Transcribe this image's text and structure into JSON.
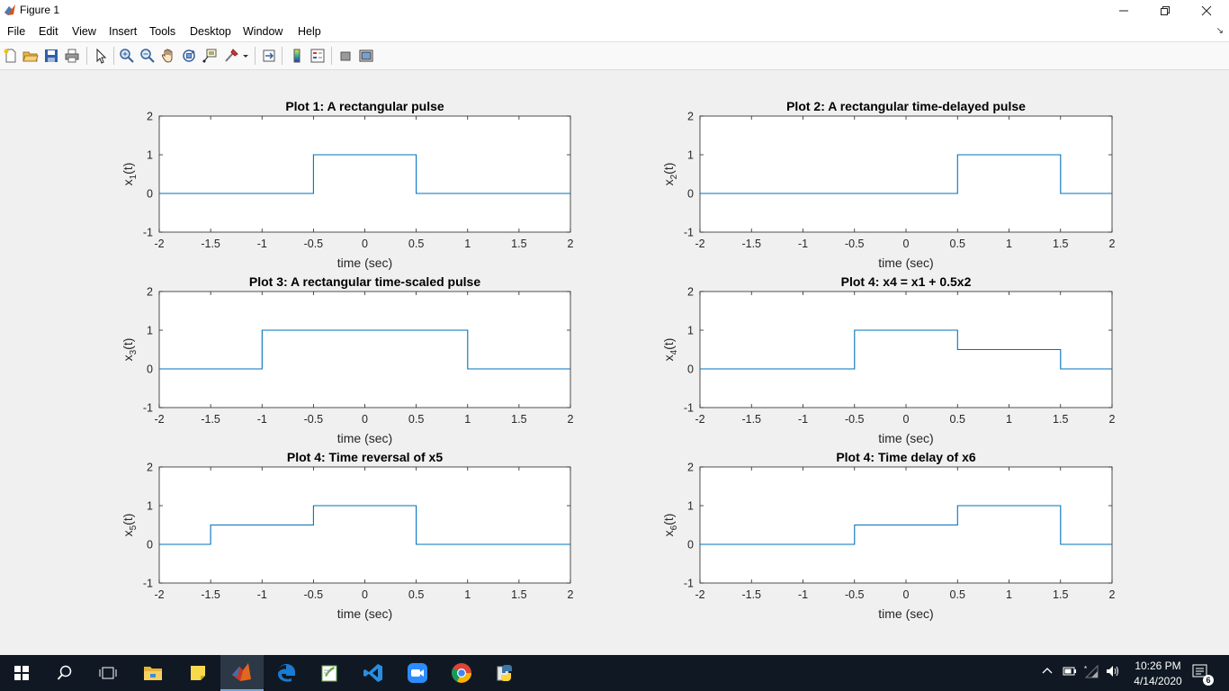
{
  "window": {
    "title": "Figure 1",
    "minimize_icon": "minimize-icon",
    "restore_icon": "restore-icon",
    "close_icon": "close-icon"
  },
  "menu": [
    "File",
    "Edit",
    "View",
    "Insert",
    "Tools",
    "Desktop",
    "Window",
    "Help"
  ],
  "toolbar_icons": [
    "new-figure-icon",
    "open-file-icon",
    "save-icon",
    "print-icon",
    "select-arrow-icon",
    "zoom-in-icon",
    "zoom-out-icon",
    "pan-icon",
    "rotate-3d-icon",
    "data-cursor-icon",
    "brush-icon",
    "link-plot-icon",
    "insert-colorbar-icon",
    "insert-legend-icon",
    "hide-plot-tools-icon",
    "show-plot-tools-icon"
  ],
  "chart_data": [
    {
      "type": "line",
      "title": "Plot 1: A rectangular pulse",
      "xlabel": "time (sec)",
      "ylabel": "x_1(t)",
      "ylabel_base": "x",
      "ylabel_sub": "1",
      "ylabel_tail": "(t)",
      "xlim": [
        -2,
        2
      ],
      "ylim": [
        -1,
        2
      ],
      "xticks": [
        -2,
        -1.5,
        -1,
        -0.5,
        0,
        0.5,
        1,
        1.5,
        2
      ],
      "xtick_labels": [
        "-2",
        "-1.5",
        "-1",
        "-0.5",
        "0",
        "0.5",
        "1",
        "1.5",
        "2"
      ],
      "yticks": [
        -1,
        0,
        1,
        2
      ],
      "ytick_labels": [
        "-1",
        "0",
        "1",
        "2"
      ],
      "x": [
        -2,
        -0.5,
        -0.5,
        0.5,
        0.5,
        2
      ],
      "y": [
        0,
        0,
        1,
        1,
        0,
        0
      ],
      "color": "#0072bd"
    },
    {
      "type": "line",
      "title": "Plot 2: A rectangular time-delayed pulse",
      "xlabel": "time (sec)",
      "ylabel": "x_2(t)",
      "ylabel_base": "x",
      "ylabel_sub": "2",
      "ylabel_tail": "(t)",
      "xlim": [
        -2,
        2
      ],
      "ylim": [
        -1,
        2
      ],
      "xticks": [
        -2,
        -1.5,
        -1,
        -0.5,
        0,
        0.5,
        1,
        1.5,
        2
      ],
      "xtick_labels": [
        "-2",
        "-1.5",
        "-1",
        "-0.5",
        "0",
        "0.5",
        "1",
        "1.5",
        "2"
      ],
      "yticks": [
        -1,
        0,
        1,
        2
      ],
      "ytick_labels": [
        "-1",
        "0",
        "1",
        "2"
      ],
      "x": [
        -2,
        0.5,
        0.5,
        1.5,
        1.5,
        2
      ],
      "y": [
        0,
        0,
        1,
        1,
        0,
        0
      ],
      "color": "#0072bd"
    },
    {
      "type": "line",
      "title": "Plot 3: A rectangular time-scaled pulse",
      "xlabel": "time (sec)",
      "ylabel": "x_3(t)",
      "ylabel_base": "x",
      "ylabel_sub": "3",
      "ylabel_tail": "(t)",
      "xlim": [
        -2,
        2
      ],
      "ylim": [
        -1,
        2
      ],
      "xticks": [
        -2,
        -1.5,
        -1,
        -0.5,
        0,
        0.5,
        1,
        1.5,
        2
      ],
      "xtick_labels": [
        "-2",
        "-1.5",
        "-1",
        "-0.5",
        "0",
        "0.5",
        "1",
        "1.5",
        "2"
      ],
      "yticks": [
        -1,
        0,
        1,
        2
      ],
      "ytick_labels": [
        "-1",
        "0",
        "1",
        "2"
      ],
      "x": [
        -2,
        -1,
        -1,
        1,
        1,
        2
      ],
      "y": [
        0,
        0,
        1,
        1,
        0,
        0
      ],
      "color": "#0072bd"
    },
    {
      "type": "line",
      "title": "Plot 4: x4 = x1 + 0.5x2",
      "xlabel": "time (sec)",
      "ylabel": "x_4(t)",
      "ylabel_base": "x",
      "ylabel_sub": "4",
      "ylabel_tail": "(t)",
      "xlim": [
        -2,
        2
      ],
      "ylim": [
        -1,
        2
      ],
      "xticks": [
        -2,
        -1.5,
        -1,
        -0.5,
        0,
        0.5,
        1,
        1.5,
        2
      ],
      "xtick_labels": [
        "-2",
        "-1.5",
        "-1",
        "-0.5",
        "0",
        "0.5",
        "1",
        "1.5",
        "2"
      ],
      "yticks": [
        -1,
        0,
        1,
        2
      ],
      "ytick_labels": [
        "-1",
        "0",
        "1",
        "2"
      ],
      "x": [
        -2,
        -0.5,
        -0.5,
        0.5,
        0.5,
        1.5,
        1.5,
        2
      ],
      "y": [
        0,
        0,
        1,
        1,
        0.5,
        0.5,
        0,
        0
      ],
      "color": "#0072bd"
    },
    {
      "type": "line",
      "title": "Plot 4: Time reversal of x5",
      "xlabel": "time (sec)",
      "ylabel": "x_5(t)",
      "ylabel_base": "x",
      "ylabel_sub": "5",
      "ylabel_tail": "(t)",
      "xlim": [
        -2,
        2
      ],
      "ylim": [
        -1,
        2
      ],
      "xticks": [
        -2,
        -1.5,
        -1,
        -0.5,
        0,
        0.5,
        1,
        1.5,
        2
      ],
      "xtick_labels": [
        "-2",
        "-1.5",
        "-1",
        "-0.5",
        "0",
        "0.5",
        "1",
        "1.5",
        "2"
      ],
      "yticks": [
        -1,
        0,
        1,
        2
      ],
      "ytick_labels": [
        "-1",
        "0",
        "1",
        "2"
      ],
      "x": [
        -2,
        -1.5,
        -1.5,
        -0.5,
        -0.5,
        0.5,
        0.5,
        2
      ],
      "y": [
        0,
        0,
        0.5,
        0.5,
        1,
        1,
        0,
        0
      ],
      "color": "#0072bd"
    },
    {
      "type": "line",
      "title": "Plot 4: Time delay of x6",
      "xlabel": "time (sec)",
      "ylabel": "x_6(t)",
      "ylabel_base": "x",
      "ylabel_sub": "6",
      "ylabel_tail": "(t)",
      "xlim": [
        -2,
        2
      ],
      "ylim": [
        -1,
        2
      ],
      "xticks": [
        -2,
        -1.5,
        -1,
        -0.5,
        0,
        0.5,
        1,
        1.5,
        2
      ],
      "xtick_labels": [
        "-2",
        "-1.5",
        "-1",
        "-0.5",
        "0",
        "0.5",
        "1",
        "1.5",
        "2"
      ],
      "yticks": [
        -1,
        0,
        1,
        2
      ],
      "ytick_labels": [
        "-1",
        "0",
        "1",
        "2"
      ],
      "x": [
        -2,
        -0.5,
        -0.5,
        0.5,
        0.5,
        1.5,
        1.5,
        2
      ],
      "y": [
        0,
        0,
        0.5,
        0.5,
        1,
        1,
        0,
        0
      ],
      "color": "#0072bd"
    }
  ],
  "taskbar": {
    "apps": [
      "start-icon",
      "search-icon",
      "task-view-icon",
      "file-explorer-icon",
      "sticky-notes-icon",
      "matlab-icon",
      "edge-icon",
      "notepad-plus-icon",
      "vscode-icon",
      "zoom-icon",
      "chrome-icon",
      "python-icon"
    ],
    "time": "10:26 PM",
    "date": "4/14/2020",
    "notification_count": "6"
  }
}
